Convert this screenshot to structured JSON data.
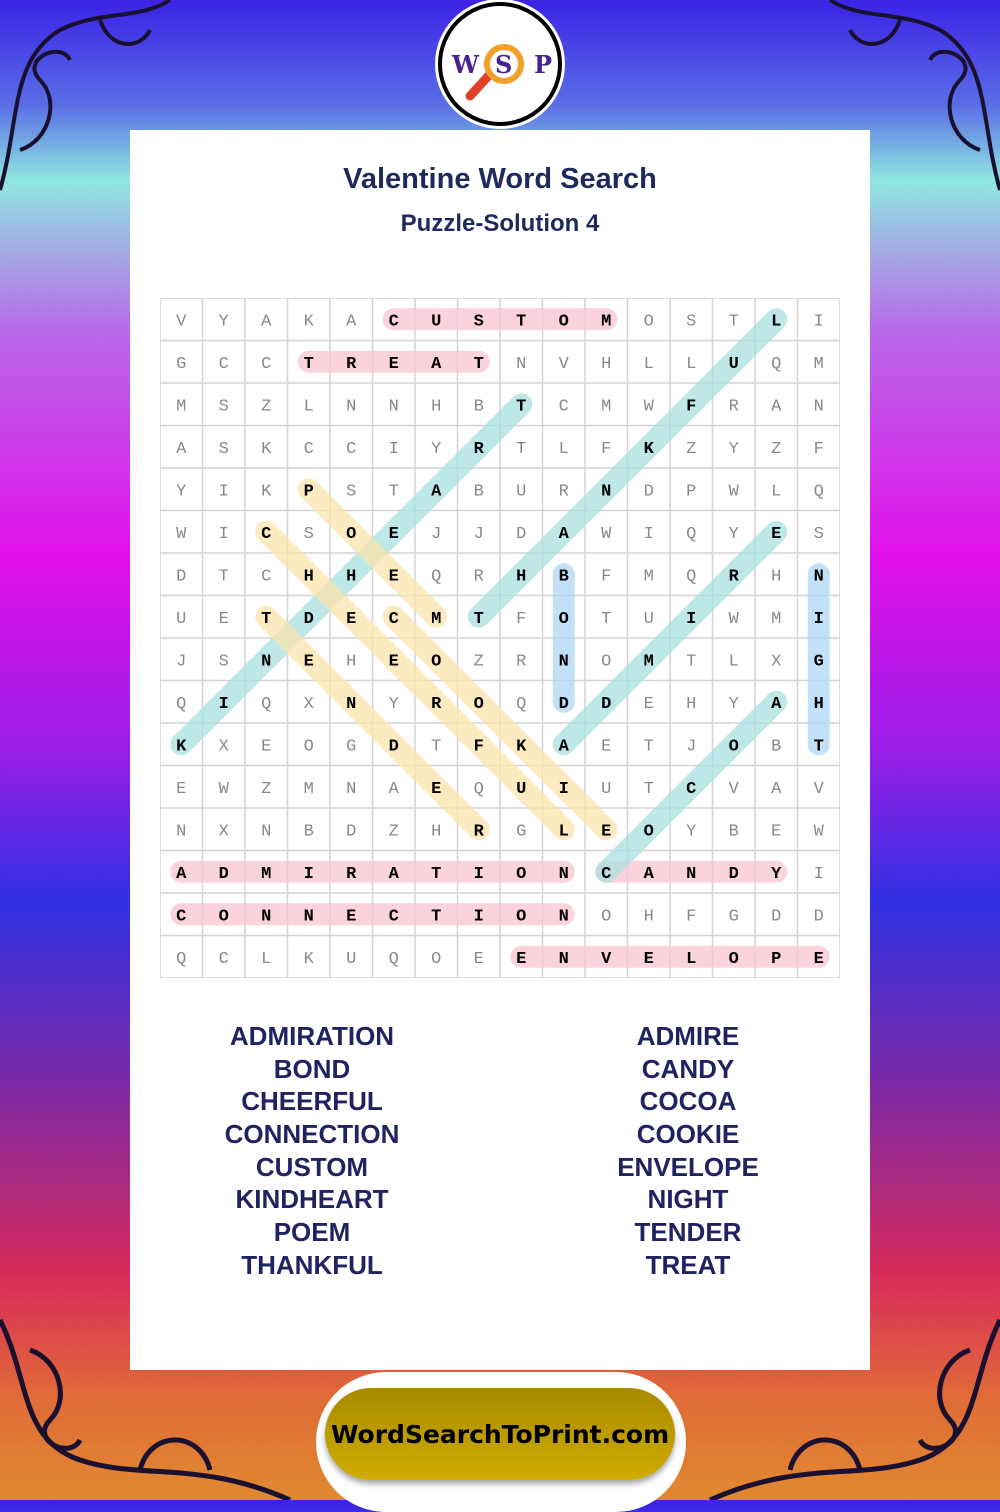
{
  "logo": {
    "letters": [
      "W",
      "S",
      "P"
    ]
  },
  "title": "Valentine Word Search",
  "subtitle": "Puzzle-Solution 4",
  "grid": [
    "VYAKACUSTOMOSTLI",
    "GCCTREATNVHLLUQM",
    "MSZLNNHBTCMWFRAN",
    "ASKCCIYRTLFKZYZF",
    "YIKPSTABURNDPWLQ",
    "WICSOEJJDAWIQYES",
    "DTCHHEQRHBFMQRHN",
    "UETDECMTFOTUIWMI",
    "JSNEHEOZRNOMTLXG",
    "QIQXNYROQDDEHYAH",
    "KXEOGDTFKAETJOBT",
    "EWZMNAEQUIUTCVAV",
    "NXNBDZHRGLEOYBEW",
    "ADMIRATIONCANDYI",
    "CONNECTIONOHFGDD",
    "QCLKUQOEENVELOPE"
  ],
  "solutions": [
    {
      "word": "CUSTOM",
      "start": [
        0,
        5
      ],
      "end": [
        0,
        10
      ],
      "color": "#f8c4d0"
    },
    {
      "word": "TREAT",
      "start": [
        1,
        3
      ],
      "end": [
        1,
        7
      ],
      "color": "#f8c4d0"
    },
    {
      "word": "ADMIRATION",
      "start": [
        13,
        0
      ],
      "end": [
        13,
        9
      ],
      "color": "#f8c4d0"
    },
    {
      "word": "CANDY",
      "start": [
        13,
        10
      ],
      "end": [
        13,
        14
      ],
      "color": "#f8c4d0"
    },
    {
      "word": "CONNECTION",
      "start": [
        14,
        0
      ],
      "end": [
        14,
        9
      ],
      "color": "#f8c4d0"
    },
    {
      "word": "ENVELOPE",
      "start": [
        15,
        8
      ],
      "end": [
        15,
        15
      ],
      "color": "#f8c4d0"
    },
    {
      "word": "THANKFUL",
      "start": [
        7,
        7
      ],
      "end": [
        0,
        14
      ],
      "color": "#a8e0e0"
    },
    {
      "word": "KINDHEART",
      "start": [
        10,
        0
      ],
      "end": [
        2,
        8
      ],
      "color": "#a8e0e0"
    },
    {
      "word": "ADMIRE",
      "start": [
        10,
        9
      ],
      "end": [
        5,
        14
      ],
      "color": "#a8e0e0"
    },
    {
      "word": "COCOA",
      "start": [
        13,
        10
      ],
      "end": [
        9,
        14
      ],
      "color": "#a8e0e0"
    },
    {
      "word": "POEM",
      "start": [
        4,
        3
      ],
      "end": [
        7,
        6
      ],
      "color": "#fbe4ac"
    },
    {
      "word": "CHEERFUL",
      "start": [
        5,
        2
      ],
      "end": [
        12,
        9
      ],
      "color": "#fbe4ac"
    },
    {
      "word": "COOKIE",
      "start": [
        7,
        5
      ],
      "end": [
        12,
        10
      ],
      "color": "#fbe4ac"
    },
    {
      "word": "TENDER",
      "start": [
        7,
        2
      ],
      "end": [
        12,
        7
      ],
      "color": "#fbe4ac"
    },
    {
      "word": "BOND",
      "start": [
        6,
        9
      ],
      "end": [
        9,
        9
      ],
      "color": "#aed6f4"
    },
    {
      "word": "NIGHT",
      "start": [
        6,
        15
      ],
      "end": [
        10,
        15
      ],
      "color": "#aed6f4"
    }
  ],
  "word_list": {
    "left": [
      "ADMIRATION",
      "BOND",
      "CHEERFUL",
      "CONNECTION",
      "CUSTOM",
      "KINDHEART",
      "POEM",
      "THANKFUL"
    ],
    "right": [
      "ADMIRE",
      "CANDY",
      "COCOA",
      "COOKIE",
      "ENVELOPE",
      "NIGHT",
      "TENDER",
      "TREAT"
    ]
  },
  "footer": {
    "site": "WordSearchToPrint.com"
  }
}
